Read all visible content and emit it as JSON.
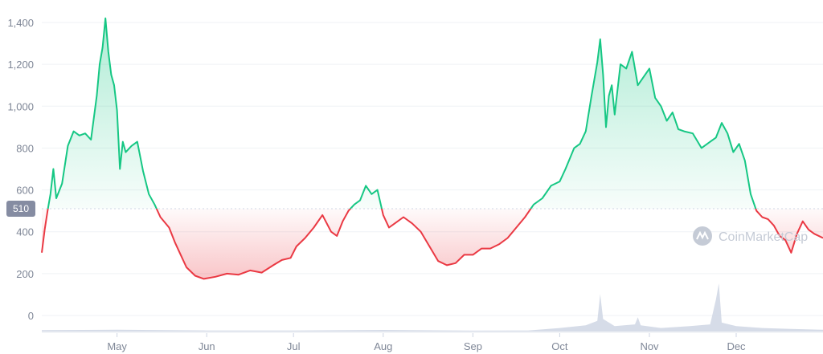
{
  "chart_data": {
    "type": "area",
    "baseline": 510,
    "baseline_label": "510",
    "ylim": [
      -75,
      1450
    ],
    "y_ticks": [
      0,
      200,
      400,
      600,
      800,
      1000,
      1200,
      1400
    ],
    "y_tick_labels": [
      "0",
      "200",
      "400",
      "600",
      "800",
      "1,000",
      "1,200",
      "1,400"
    ],
    "x_range": [
      "2021-04-05",
      "2021-12-31"
    ],
    "x_ticks": [
      "2021-05-01",
      "2021-06-01",
      "2021-07-01",
      "2021-08-01",
      "2021-09-01",
      "2021-10-01",
      "2021-11-01",
      "2021-12-01"
    ],
    "x_tick_labels": [
      "May",
      "Jun",
      "Jul",
      "Aug",
      "Sep",
      "Oct",
      "Nov",
      "Dec"
    ],
    "grid": true,
    "colors": {
      "above": "#16c784",
      "below": "#ea3943",
      "volume": "#cfd6e4",
      "grid": "#eff2f5",
      "baseline_line": "#cfd6e4",
      "badge": "#858ca2"
    },
    "series": [
      {
        "x": [
          "2021-04-05",
          "2021-04-06",
          "2021-04-07",
          "2021-04-08",
          "2021-04-09",
          "2021-04-10",
          "2021-04-12",
          "2021-04-14",
          "2021-04-16",
          "2021-04-18",
          "2021-04-20",
          "2021-04-22",
          "2021-04-24",
          "2021-04-25",
          "2021-04-26",
          "2021-04-27",
          "2021-04-28",
          "2021-04-29",
          "2021-04-30",
          "2021-05-01",
          "2021-05-02",
          "2021-05-03",
          "2021-05-04",
          "2021-05-06",
          "2021-05-08",
          "2021-05-10",
          "2021-05-12",
          "2021-05-14",
          "2021-05-16",
          "2021-05-19",
          "2021-05-21",
          "2021-05-23",
          "2021-05-25",
          "2021-05-28",
          "2021-05-31",
          "2021-06-04",
          "2021-06-08",
          "2021-06-12",
          "2021-06-16",
          "2021-06-20",
          "2021-06-24",
          "2021-06-27",
          "2021-06-30",
          "2021-07-02",
          "2021-07-05",
          "2021-07-08",
          "2021-07-11",
          "2021-07-14",
          "2021-07-16",
          "2021-07-18",
          "2021-07-20",
          "2021-07-22",
          "2021-07-24",
          "2021-07-26",
          "2021-07-28",
          "2021-07-30",
          "2021-08-01",
          "2021-08-03",
          "2021-08-05",
          "2021-08-08",
          "2021-08-11",
          "2021-08-14",
          "2021-08-17",
          "2021-08-20",
          "2021-08-23",
          "2021-08-26",
          "2021-08-29",
          "2021-09-01",
          "2021-09-04",
          "2021-09-07",
          "2021-09-10",
          "2021-09-13",
          "2021-09-16",
          "2021-09-19",
          "2021-09-22",
          "2021-09-25",
          "2021-09-28",
          "2021-10-01",
          "2021-10-03",
          "2021-10-06",
          "2021-10-08",
          "2021-10-10",
          "2021-10-12",
          "2021-10-14",
          "2021-10-15",
          "2021-10-16",
          "2021-10-17",
          "2021-10-18",
          "2021-10-19",
          "2021-10-20",
          "2021-10-22",
          "2021-10-24",
          "2021-10-26",
          "2021-10-28",
          "2021-10-30",
          "2021-11-01",
          "2021-11-03",
          "2021-11-05",
          "2021-11-07",
          "2021-11-09",
          "2021-11-11",
          "2021-11-13",
          "2021-11-16",
          "2021-11-19",
          "2021-11-22",
          "2021-11-24",
          "2021-11-26",
          "2021-11-28",
          "2021-11-30",
          "2021-12-02",
          "2021-12-04",
          "2021-12-06",
          "2021-12-08",
          "2021-12-10",
          "2021-12-12",
          "2021-12-14",
          "2021-12-16",
          "2021-12-18",
          "2021-12-20",
          "2021-12-22",
          "2021-12-24",
          "2021-12-26",
          "2021-12-28",
          "2021-12-31"
        ],
        "y": [
          300,
          410,
          500,
          580,
          700,
          560,
          630,
          810,
          880,
          860,
          870,
          840,
          1050,
          1200,
          1280,
          1420,
          1260,
          1150,
          1100,
          980,
          700,
          830,
          780,
          810,
          830,
          690,
          580,
          530,
          470,
          420,
          350,
          290,
          230,
          190,
          175,
          185,
          200,
          195,
          215,
          205,
          240,
          265,
          275,
          330,
          370,
          420,
          480,
          400,
          380,
          450,
          500,
          530,
          550,
          620,
          580,
          600,
          480,
          420,
          440,
          470,
          440,
          400,
          330,
          260,
          240,
          250,
          290,
          290,
          320,
          320,
          340,
          370,
          420,
          470,
          530,
          560,
          620,
          640,
          700,
          800,
          820,
          880,
          1050,
          1210,
          1320,
          1150,
          900,
          1050,
          1100,
          960,
          1200,
          1180,
          1260,
          1100,
          1140,
          1180,
          1040,
          1000,
          930,
          970,
          890,
          880,
          870,
          800,
          830,
          850,
          920,
          870,
          780,
          820,
          740,
          580,
          500,
          470,
          460,
          430,
          380,
          360,
          300,
          390,
          450,
          410,
          390,
          370
        ]
      }
    ],
    "volume": {
      "x": [
        "2021-04-05",
        "2021-05-01",
        "2021-06-01",
        "2021-07-01",
        "2021-08-01",
        "2021-09-01",
        "2021-09-20",
        "2021-10-01",
        "2021-10-10",
        "2021-10-14",
        "2021-10-15",
        "2021-10-16",
        "2021-10-20",
        "2021-10-27",
        "2021-10-28",
        "2021-10-29",
        "2021-11-05",
        "2021-11-15",
        "2021-11-22",
        "2021-11-24",
        "2021-11-25",
        "2021-11-26",
        "2021-12-01",
        "2021-12-10",
        "2021-12-20",
        "2021-12-31"
      ],
      "values": [
        8,
        10,
        6,
        6,
        9,
        5,
        6,
        20,
        35,
        60,
        210,
        70,
        30,
        40,
        80,
        35,
        20,
        30,
        40,
        180,
        270,
        50,
        30,
        20,
        15,
        10
      ]
    },
    "watermark": "CoinMarketCap"
  }
}
